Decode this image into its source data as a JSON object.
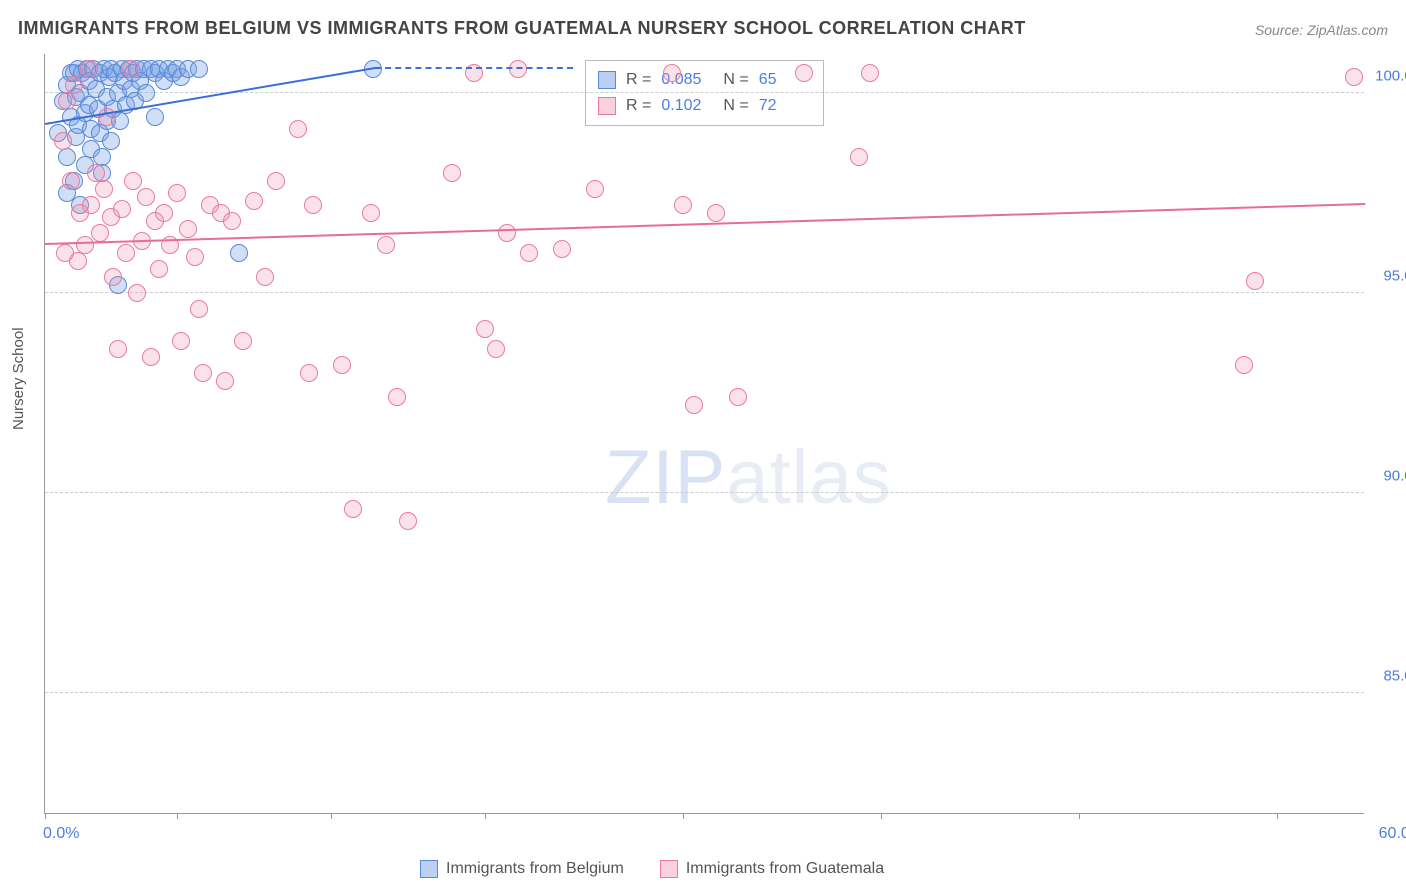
{
  "title": "IMMIGRANTS FROM BELGIUM VS IMMIGRANTS FROM GUATEMALA NURSERY SCHOOL CORRELATION CHART",
  "source": "Source: ZipAtlas.com",
  "ylabel": "Nursery School",
  "watermark_a": "ZIP",
  "watermark_b": "atlas",
  "chart": {
    "type": "scatter",
    "xlim": [
      0,
      60
    ],
    "ylim": [
      82,
      101
    ],
    "xticks": [
      0,
      6,
      13,
      20,
      29,
      38,
      47,
      56
    ],
    "yticks": [
      {
        "v": 100.0,
        "label": "100.0%"
      },
      {
        "v": 95.0,
        "label": "95.0%"
      },
      {
        "v": 90.0,
        "label": "90.0%"
      },
      {
        "v": 85.0,
        "label": "85.0%"
      }
    ],
    "xaxis_labels": {
      "left": "0.0%",
      "right": "60.0%"
    },
    "background_color": "#ffffff",
    "grid_color": "#cccccc",
    "marker_radius": 9,
    "series": [
      {
        "key": "belgium",
        "label": "Immigrants from Belgium",
        "color_fill": "rgba(120,160,230,0.35)",
        "color_stroke": "#5a8ad6",
        "R": "0.085",
        "N": "65",
        "trend": {
          "x1": 0,
          "y1": 99.2,
          "x2": 15,
          "y2": 100.6,
          "dash_to_x": 24
        },
        "points": [
          [
            0.6,
            99.0
          ],
          [
            0.8,
            99.8
          ],
          [
            1.0,
            100.2
          ],
          [
            1.0,
            98.4
          ],
          [
            1.2,
            100.5
          ],
          [
            1.2,
            99.4
          ],
          [
            1.3,
            100.5
          ],
          [
            1.4,
            99.9
          ],
          [
            1.4,
            98.9
          ],
          [
            1.5,
            100.6
          ],
          [
            1.5,
            99.2
          ],
          [
            1.6,
            100.0
          ],
          [
            1.7,
            100.5
          ],
          [
            1.8,
            99.5
          ],
          [
            1.8,
            98.2
          ],
          [
            1.9,
            100.6
          ],
          [
            2.0,
            100.3
          ],
          [
            2.0,
            99.7
          ],
          [
            2.1,
            99.1
          ],
          [
            2.1,
            98.6
          ],
          [
            2.2,
            100.6
          ],
          [
            2.3,
            100.1
          ],
          [
            2.4,
            99.6
          ],
          [
            2.5,
            100.5
          ],
          [
            2.5,
            99.0
          ],
          [
            2.6,
            98.4
          ],
          [
            2.7,
            100.6
          ],
          [
            2.8,
            99.9
          ],
          [
            2.8,
            99.3
          ],
          [
            2.9,
            100.4
          ],
          [
            3.0,
            100.6
          ],
          [
            3.0,
            98.8
          ],
          [
            3.1,
            99.6
          ],
          [
            3.2,
            100.5
          ],
          [
            3.3,
            100.0
          ],
          [
            3.4,
            99.3
          ],
          [
            3.5,
            100.6
          ],
          [
            3.6,
            100.3
          ],
          [
            3.7,
            99.7
          ],
          [
            3.8,
            100.6
          ],
          [
            3.9,
            100.1
          ],
          [
            4.0,
            100.5
          ],
          [
            4.1,
            99.8
          ],
          [
            4.2,
            100.6
          ],
          [
            4.3,
            100.3
          ],
          [
            4.5,
            100.6
          ],
          [
            4.6,
            100.0
          ],
          [
            4.8,
            100.6
          ],
          [
            5.0,
            100.5
          ],
          [
            5.0,
            99.4
          ],
          [
            5.2,
            100.6
          ],
          [
            5.4,
            100.3
          ],
          [
            5.6,
            100.6
          ],
          [
            5.8,
            100.5
          ],
          [
            6.0,
            100.6
          ],
          [
            6.2,
            100.4
          ],
          [
            6.5,
            100.6
          ],
          [
            7.0,
            100.6
          ],
          [
            2.6,
            98.0
          ],
          [
            3.3,
            95.2
          ],
          [
            8.8,
            96.0
          ],
          [
            14.9,
            100.6
          ],
          [
            1.0,
            97.5
          ],
          [
            1.3,
            97.8
          ],
          [
            1.6,
            97.2
          ]
        ]
      },
      {
        "key": "guatemala",
        "label": "Immigrants from Guatemala",
        "color_fill": "rgba(240,140,170,0.25)",
        "color_stroke": "#e97ba0",
        "R": "0.102",
        "N": "72",
        "trend": {
          "x1": 0,
          "y1": 96.2,
          "x2": 60,
          "y2": 97.2
        },
        "points": [
          [
            0.8,
            98.8
          ],
          [
            0.9,
            96.0
          ],
          [
            1.0,
            99.8
          ],
          [
            1.2,
            97.8
          ],
          [
            1.3,
            100.2
          ],
          [
            1.5,
            95.8
          ],
          [
            1.6,
            97.0
          ],
          [
            1.8,
            96.2
          ],
          [
            2.0,
            100.6
          ],
          [
            2.1,
            97.2
          ],
          [
            2.3,
            98.0
          ],
          [
            2.5,
            96.5
          ],
          [
            2.7,
            97.6
          ],
          [
            2.8,
            99.4
          ],
          [
            3.0,
            96.9
          ],
          [
            3.1,
            95.4
          ],
          [
            3.3,
            93.6
          ],
          [
            3.5,
            97.1
          ],
          [
            3.7,
            96.0
          ],
          [
            3.9,
            100.6
          ],
          [
            4.0,
            97.8
          ],
          [
            4.2,
            95.0
          ],
          [
            4.4,
            96.3
          ],
          [
            4.6,
            97.4
          ],
          [
            4.8,
            93.4
          ],
          [
            5.0,
            96.8
          ],
          [
            5.2,
            95.6
          ],
          [
            5.4,
            97.0
          ],
          [
            5.7,
            96.2
          ],
          [
            6.0,
            97.5
          ],
          [
            6.2,
            93.8
          ],
          [
            6.5,
            96.6
          ],
          [
            7.0,
            94.6
          ],
          [
            7.2,
            93.0
          ],
          [
            7.5,
            97.2
          ],
          [
            8.0,
            97.0
          ],
          [
            8.2,
            92.8
          ],
          [
            8.5,
            96.8
          ],
          [
            9.0,
            93.8
          ],
          [
            9.5,
            97.3
          ],
          [
            10.0,
            95.4
          ],
          [
            10.5,
            97.8
          ],
          [
            11.5,
            99.1
          ],
          [
            12.0,
            93.0
          ],
          [
            12.2,
            97.2
          ],
          [
            13.5,
            93.2
          ],
          [
            14.0,
            89.6
          ],
          [
            14.8,
            97.0
          ],
          [
            15.5,
            96.2
          ],
          [
            16.0,
            92.4
          ],
          [
            16.5,
            89.3
          ],
          [
            18.5,
            98.0
          ],
          [
            19.5,
            100.5
          ],
          [
            20.0,
            94.1
          ],
          [
            20.5,
            93.6
          ],
          [
            21.0,
            96.5
          ],
          [
            21.5,
            100.6
          ],
          [
            22.0,
            96.0
          ],
          [
            23.5,
            96.1
          ],
          [
            25.0,
            97.6
          ],
          [
            28.5,
            100.5
          ],
          [
            29.5,
            92.2
          ],
          [
            29.0,
            97.2
          ],
          [
            30.5,
            97.0
          ],
          [
            31.5,
            92.4
          ],
          [
            34.5,
            100.5
          ],
          [
            37.0,
            98.4
          ],
          [
            37.5,
            100.5
          ],
          [
            54.5,
            93.2
          ],
          [
            55.0,
            95.3
          ],
          [
            59.5,
            100.4
          ],
          [
            6.8,
            95.9
          ]
        ]
      }
    ]
  },
  "stats_legend_labels": {
    "R": "R =",
    "N": "N ="
  }
}
